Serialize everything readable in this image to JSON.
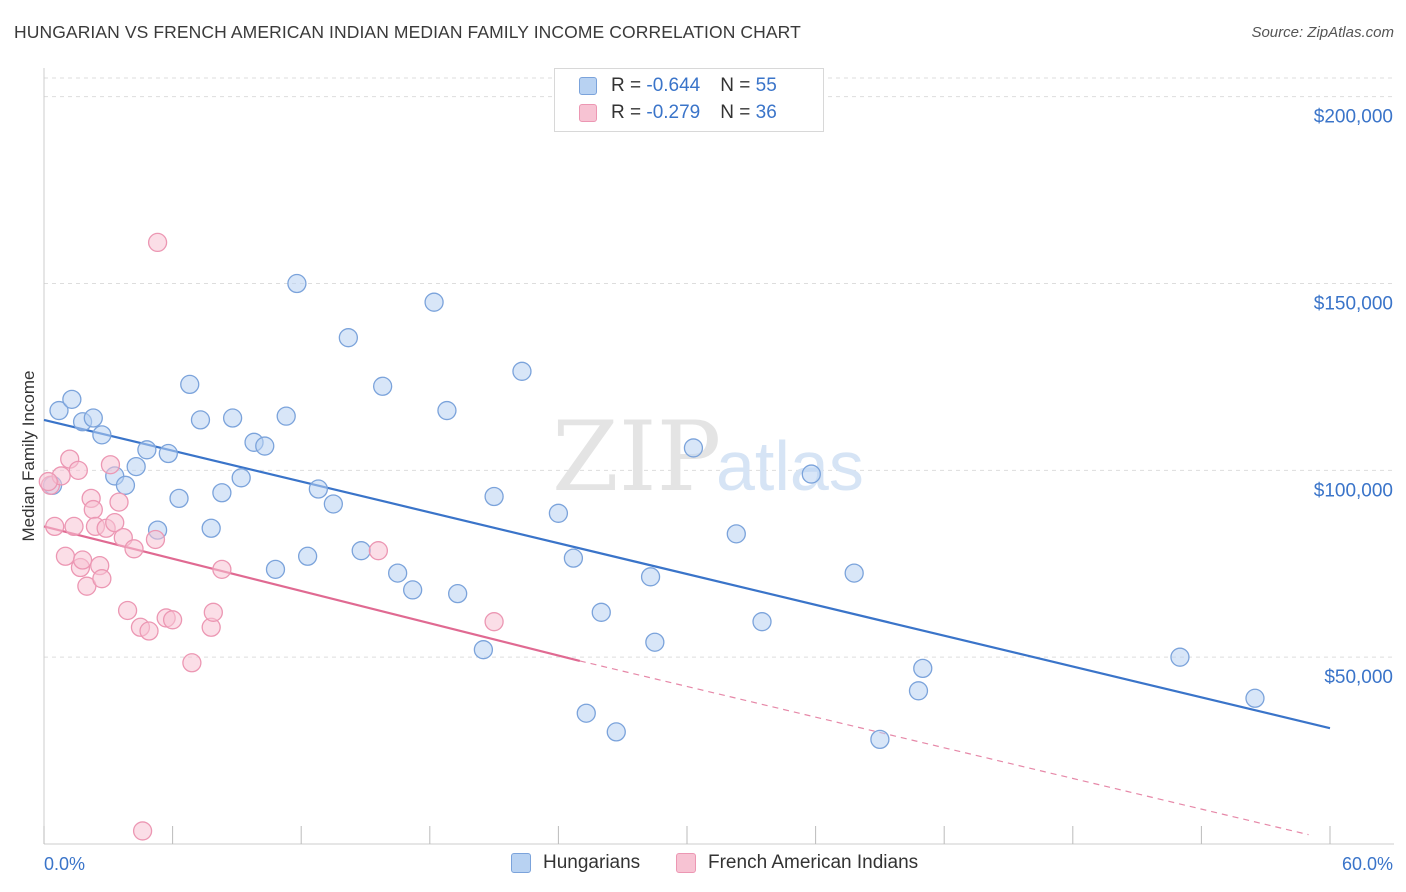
{
  "title": "HUNGARIAN VS FRENCH AMERICAN INDIAN MEDIAN FAMILY INCOME CORRELATION CHART",
  "source": "Source: ZipAtlas.com",
  "watermark": {
    "left": "ZIP",
    "right": "atlas"
  },
  "legend": {
    "rows": [
      {
        "r_label": "R = ",
        "r_value": "-0.644",
        "n_label": "N = ",
        "n_value": "55"
      },
      {
        "r_label": "R = ",
        "r_value": "-0.279",
        "n_label": "N = ",
        "n_value": "36"
      }
    ]
  },
  "colors": {
    "blue": "#3a74c9",
    "blue_fill": "#b8d2f2",
    "blue_stroke": "#7ba3db",
    "pink": "#e06a92",
    "pink_fill": "#f7c3d3",
    "pink_stroke": "#ec97b3",
    "grid": "#dddddd"
  },
  "chart_data": {
    "type": "scatter",
    "title": "HUNGARIAN VS FRENCH AMERICAN INDIAN MEDIAN FAMILY INCOME CORRELATION CHART",
    "xlabel": "",
    "ylabel": "Median Family Income",
    "xlim": [
      0,
      60
    ],
    "ylim": [
      0,
      205000
    ],
    "x_tick_labels": [
      "0.0%",
      "60.0%"
    ],
    "y_ticks": [
      50000,
      100000,
      150000,
      200000
    ],
    "y_tick_labels": [
      "$50,000",
      "$100,000",
      "$150,000",
      "$200,000"
    ],
    "grid": true,
    "legend_position": "top-center",
    "series": [
      {
        "name": "Hungarians",
        "color": "#3a74c9",
        "trend": {
          "x": [
            0,
            60
          ],
          "y": [
            113500,
            31000
          ],
          "style": "solid"
        },
        "points": [
          [
            0.7,
            116000
          ],
          [
            1.3,
            119000
          ],
          [
            1.8,
            113000
          ],
          [
            2.3,
            114000
          ],
          [
            2.7,
            109500
          ],
          [
            3.3,
            98500
          ],
          [
            3.8,
            96000
          ],
          [
            4.3,
            101000
          ],
          [
            4.8,
            105500
          ],
          [
            5.3,
            84000
          ],
          [
            5.8,
            104500
          ],
          [
            6.3,
            92500
          ],
          [
            6.8,
            123000
          ],
          [
            7.3,
            113500
          ],
          [
            7.8,
            84500
          ],
          [
            8.3,
            94000
          ],
          [
            8.8,
            114000
          ],
          [
            9.2,
            98000
          ],
          [
            9.8,
            107500
          ],
          [
            10.3,
            106500
          ],
          [
            10.8,
            73500
          ],
          [
            11.3,
            114500
          ],
          [
            11.8,
            150000
          ],
          [
            12.3,
            77000
          ],
          [
            12.8,
            95000
          ],
          [
            13.5,
            91000
          ],
          [
            14.2,
            135500
          ],
          [
            14.8,
            78500
          ],
          [
            15.8,
            122500
          ],
          [
            16.5,
            72500
          ],
          [
            17.2,
            68000
          ],
          [
            18.2,
            145000
          ],
          [
            18.8,
            116000
          ],
          [
            19.3,
            67000
          ],
          [
            20.5,
            52000
          ],
          [
            21.0,
            93000
          ],
          [
            22.3,
            126500
          ],
          [
            24.0,
            88500
          ],
          [
            24.7,
            76500
          ],
          [
            25.3,
            35000
          ],
          [
            26.0,
            62000
          ],
          [
            26.7,
            30000
          ],
          [
            28.3,
            71500
          ],
          [
            28.5,
            54000
          ],
          [
            30.3,
            106000
          ],
          [
            32.3,
            83000
          ],
          [
            33.5,
            59500
          ],
          [
            35.8,
            99000
          ],
          [
            37.8,
            72500
          ],
          [
            39.0,
            28000
          ],
          [
            40.8,
            41000
          ],
          [
            41.0,
            47000
          ],
          [
            53.0,
            50000
          ],
          [
            56.5,
            39000
          ],
          [
            0.4,
            96000
          ]
        ]
      },
      {
        "name": "French American Indians",
        "color": "#e06a92",
        "trend": {
          "x": [
            0,
            25
          ],
          "y": [
            85000,
            49000
          ],
          "x_dashed_end": 59,
          "y_dashed_end": 2500,
          "style": "solid-then-dashed"
        },
        "points": [
          [
            0.3,
            96000
          ],
          [
            0.5,
            85000
          ],
          [
            0.8,
            98500
          ],
          [
            1.0,
            77000
          ],
          [
            1.2,
            103000
          ],
          [
            1.4,
            85000
          ],
          [
            1.6,
            100000
          ],
          [
            1.7,
            74000
          ],
          [
            1.8,
            76000
          ],
          [
            2.0,
            69000
          ],
          [
            2.2,
            92500
          ],
          [
            2.3,
            89500
          ],
          [
            2.4,
            85000
          ],
          [
            2.6,
            74500
          ],
          [
            2.7,
            71000
          ],
          [
            2.9,
            84500
          ],
          [
            3.1,
            101500
          ],
          [
            3.3,
            86000
          ],
          [
            3.5,
            91500
          ],
          [
            3.7,
            82000
          ],
          [
            3.9,
            62500
          ],
          [
            4.2,
            79000
          ],
          [
            4.5,
            58000
          ],
          [
            4.6,
            3500
          ],
          [
            4.9,
            57000
          ],
          [
            5.2,
            81500
          ],
          [
            5.3,
            161000
          ],
          [
            5.7,
            60500
          ],
          [
            6.0,
            60000
          ],
          [
            6.9,
            48500
          ],
          [
            7.8,
            58000
          ],
          [
            7.9,
            62000
          ],
          [
            8.3,
            73500
          ],
          [
            15.6,
            78500
          ],
          [
            21.0,
            59500
          ],
          [
            0.2,
            97000
          ]
        ]
      }
    ]
  },
  "bottom_legend": [
    {
      "label": "Hungarians"
    },
    {
      "label": "French American Indians"
    }
  ]
}
